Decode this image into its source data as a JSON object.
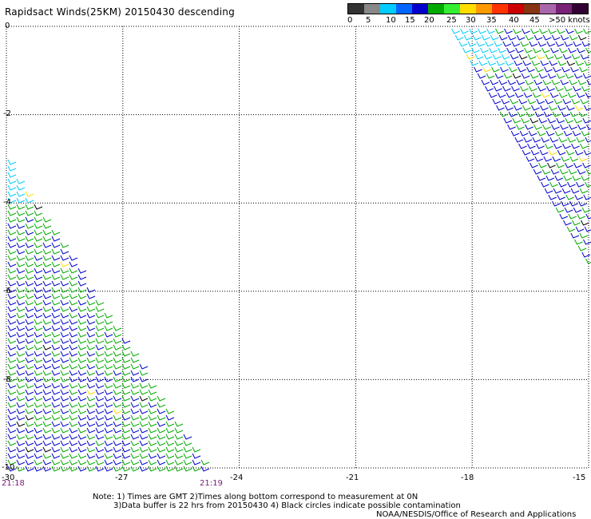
{
  "title": "Rapidsact Winds(25KM) 20150430 descending",
  "legend": {
    "swatches": [
      {
        "name": "0",
        "color": "#333333"
      },
      {
        "name": "0-5",
        "color": "#888888"
      },
      {
        "name": "5",
        "color": "#00ccff"
      },
      {
        "name": "10",
        "color": "#0066ff"
      },
      {
        "name": "15",
        "color": "#0000cc"
      },
      {
        "name": "20",
        "color": "#00aa00"
      },
      {
        "name": "20-25",
        "color": "#33ee33"
      },
      {
        "name": "25",
        "color": "#ffdd00"
      },
      {
        "name": "30",
        "color": "#ff9900"
      },
      {
        "name": "35",
        "color": "#ff3300"
      },
      {
        "name": "40",
        "color": "#cc0000"
      },
      {
        "name": "40-45",
        "color": "#883311"
      },
      {
        "name": "45",
        "color": "#aa66aa"
      },
      {
        "name": "50",
        "color": "#772277"
      },
      {
        "name": ">50",
        "color": "#330033"
      }
    ],
    "labels": [
      "0",
      "5",
      "10",
      "15",
      "20",
      "25",
      "30",
      "35",
      "40",
      "45",
      ">50 knots"
    ]
  },
  "y_axis": {
    "labels": [
      "0",
      "-2",
      "-4",
      "-6",
      "-8",
      "-10"
    ]
  },
  "x_axis": {
    "labels": [
      "-30",
      "-27",
      "-24",
      "-21",
      "-18",
      "-15"
    ]
  },
  "times": {
    "left": "21:18",
    "right": "21:19"
  },
  "notes": {
    "line1": "Note:  1) Times are GMT  2)Times along bottom correspond to measurement at 0N",
    "line2": "3)Data buffer is 22 hrs from 20150430  4) Black circles indicate possible contamination",
    "line3": "NOAA/NESDIS/Office of Research and Applications"
  },
  "colors": {
    "calm": "#00ccff",
    "moderate": "#0000cc",
    "fresh": "#00aa00",
    "strong": "#ffdd00",
    "contaminated": "#000000"
  }
}
